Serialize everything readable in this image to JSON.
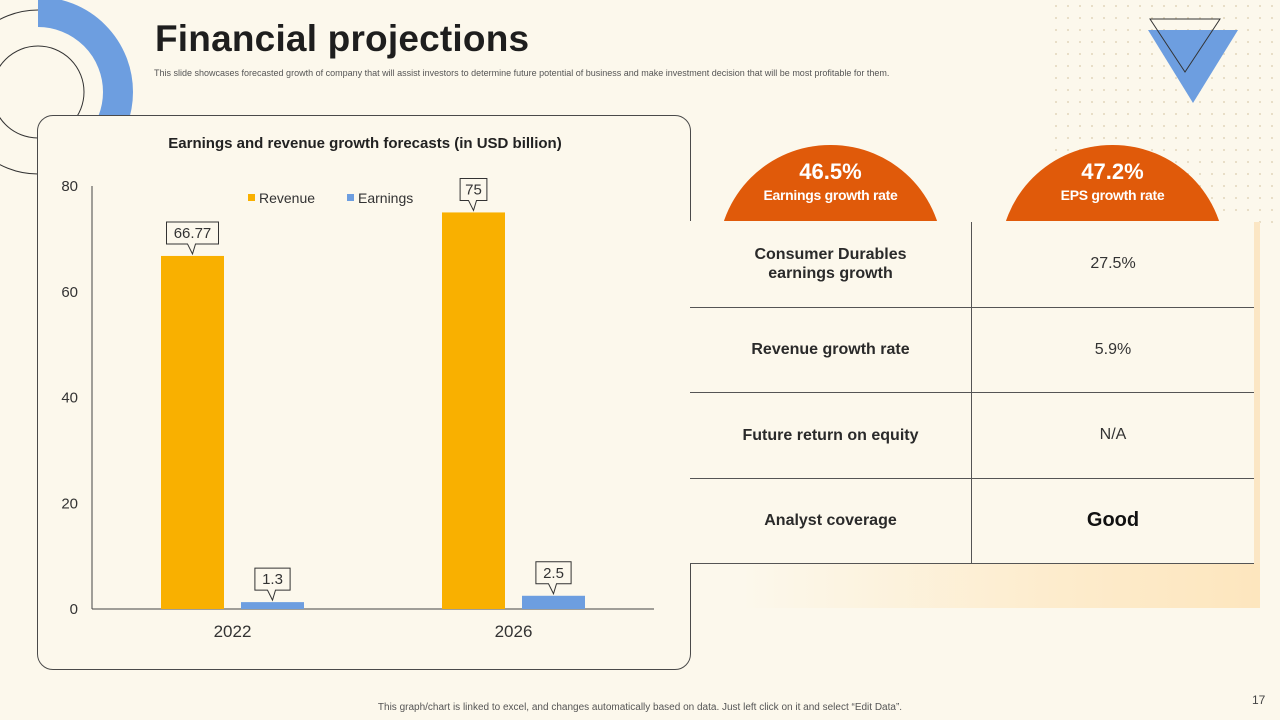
{
  "slide": {
    "title": "Financial projections",
    "subtitle": "This slide showcases forecasted growth of company that will assist investors to determine future potential of business and make investment decision that will be most profitable for them.",
    "footer": "This graph/chart is linked to excel, and changes automatically based on data. Just left click on it and select “Edit Data”.",
    "page_number": "17"
  },
  "chart_data": {
    "type": "bar",
    "title": "Earnings and revenue growth forecasts (in USD billion)",
    "categories": [
      "2022",
      "2026"
    ],
    "series": [
      {
        "name": "Revenue",
        "values": [
          66.77,
          75
        ],
        "color": "#f9b000"
      },
      {
        "name": "Earnings",
        "values": [
          1.3,
          2.5
        ],
        "color": "#6d9ee0"
      }
    ],
    "ylim": [
      0,
      80
    ],
    "yticks": [
      0,
      20,
      40,
      60,
      80
    ],
    "xlabel": "",
    "ylabel": "",
    "legend": "top-center",
    "grid": false
  },
  "kpis": [
    {
      "value": "46.5%",
      "label": "Earnings growth rate",
      "color": "#e05a0a"
    },
    {
      "value": "47.2%",
      "label": "EPS growth rate",
      "color": "#e05a0a"
    }
  ],
  "table": {
    "rows": [
      {
        "label": "Consumer Durables earnings growth",
        "value": "27.5%"
      },
      {
        "label": "Revenue growth rate",
        "value": "5.9%"
      },
      {
        "label": "Future return on equity",
        "value": "N/A"
      },
      {
        "label": "Analyst coverage",
        "value": "Good"
      }
    ]
  }
}
